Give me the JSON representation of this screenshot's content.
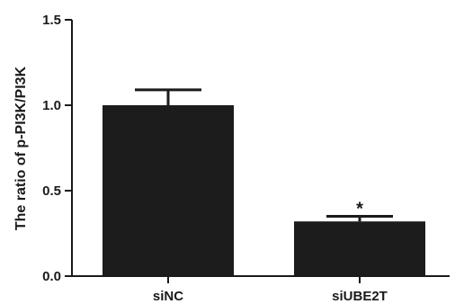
{
  "chart_data": {
    "type": "bar",
    "title": "",
    "xlabel": "",
    "ylabel": "The ratio of p-PI3K/PI3K",
    "categories": [
      "siNC",
      "siUBE2T"
    ],
    "values": [
      1.0,
      0.32
    ],
    "errors": [
      0.09,
      0.03
    ],
    "annotations": [
      "",
      "*"
    ],
    "ylim": [
      0,
      1.5
    ],
    "yticks": [
      0.0,
      0.5,
      1.0,
      1.5
    ],
    "ytick_labels": [
      "0.0",
      "0.5",
      "1.0",
      "1.5"
    ],
    "grid": false,
    "legend": "none",
    "bar_color": "#1c1c1c",
    "axis_color": "#1a1a1a"
  }
}
